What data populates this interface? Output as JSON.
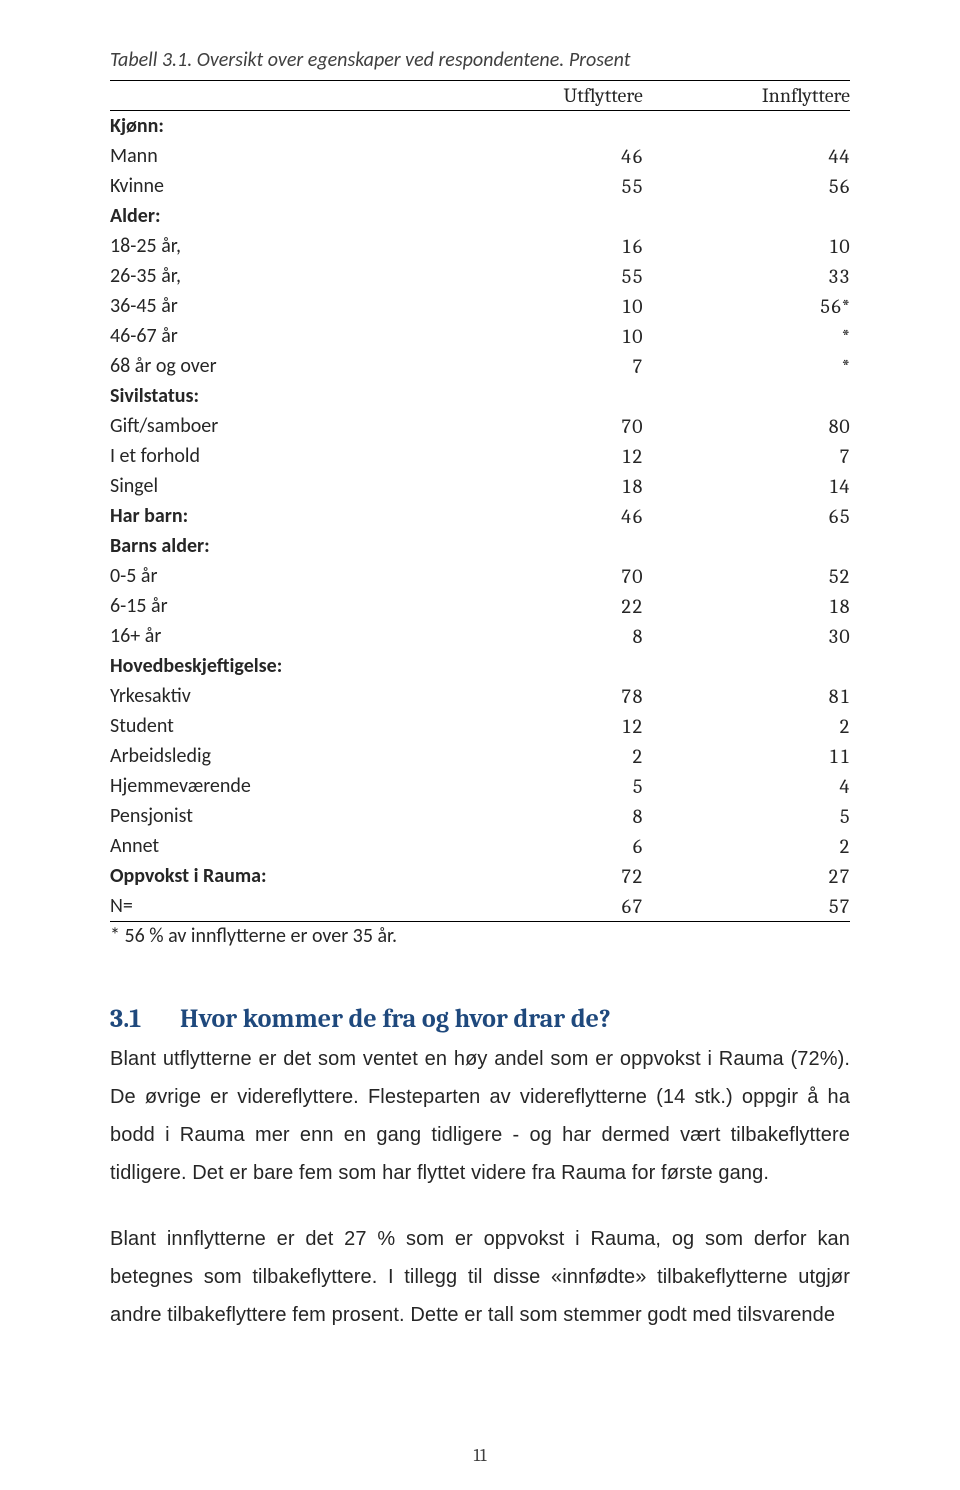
{
  "table": {
    "title": "Tabell 3.1. Oversikt over egenskaper ved respondentene. Prosent",
    "col1": "Utflyttere",
    "col2": "Innflyttere",
    "rows": [
      {
        "label": "Kjønn:",
        "v1": "",
        "v2": "",
        "bold": true
      },
      {
        "label": "Mann",
        "v1": "46",
        "v2": "44"
      },
      {
        "label": "Kvinne",
        "v1": "55",
        "v2": "56"
      },
      {
        "label": "Alder:",
        "v1": "",
        "v2": "",
        "bold": true
      },
      {
        "label": "18-25 år,",
        "v1": "16",
        "v2": "10"
      },
      {
        "label": "26-35 år,",
        "v1": "55",
        "v2": "33"
      },
      {
        "label": "36-45 år",
        "v1": "10",
        "v2": "56*",
        "spacer": true
      },
      {
        "label": "46-67 år",
        "v1": "10",
        "v2": "*",
        "spacer": true
      },
      {
        "label": "68 år og over",
        "v1": "7",
        "v2": "*"
      },
      {
        "label": "Sivilstatus:",
        "v1": "",
        "v2": "",
        "bold": true
      },
      {
        "label": "Gift/samboer",
        "v1": "70",
        "v2": "80"
      },
      {
        "label": "I et forhold",
        "v1": "12",
        "v2": "7"
      },
      {
        "label": "Singel",
        "v1": "18",
        "v2": "14"
      },
      {
        "label": "Har barn:",
        "v1": "46",
        "v2": "65",
        "bold": true
      },
      {
        "label": "Barns alder:",
        "v1": "",
        "v2": "",
        "bold": true
      },
      {
        "label": "0-5 år",
        "v1": "70",
        "v2": "52"
      },
      {
        "label": "6-15 år",
        "v1": "22",
        "v2": "18"
      },
      {
        "label": "16+ år",
        "v1": "8",
        "v2": "30",
        "spacer": true
      },
      {
        "label": "Hovedbeskjeftigelse:",
        "v1": "",
        "v2": "",
        "bold": true,
        "spacer": true
      },
      {
        "label": "Yrkesaktiv",
        "v1": "78",
        "v2": "81"
      },
      {
        "label": "Student",
        "v1": "12",
        "v2": "2"
      },
      {
        "label": "Arbeidsledig",
        "v1": "2",
        "v2": "11"
      },
      {
        "label": "Hjemmeværende",
        "v1": "5",
        "v2": "4"
      },
      {
        "label": "Pensjonist",
        "v1": "8",
        "v2": "5"
      },
      {
        "label": "Annet",
        "v1": "6",
        "v2": "2"
      },
      {
        "label": "Oppvokst i Rauma:",
        "v1": "72",
        "v2": "27",
        "bold": true
      },
      {
        "label": "N=",
        "v1": "67",
        "v2": "57",
        "foot": true
      }
    ],
    "footnote": "* 56 % av innflytterne er over 35 år."
  },
  "heading": {
    "number": "3.1",
    "text": "Hvor kommer de fra og hvor drar de?"
  },
  "para1": "Blant utflytterne er det som ventet en høy andel som er oppvokst i Rauma (72%). De øvrige er videreflyttere. Flesteparten av videreflytterne (14 stk.) oppgir å ha bodd i Rauma mer enn en gang tidligere - og har dermed vært tilbakeflyttere tidligere. Det er bare fem som har flyttet videre fra Rauma for første gang.",
  "para2": "Blant innflytterne er det 27 % som er oppvokst i Rauma, og som derfor kan betegnes som tilbakeflyttere. I tillegg til disse «innfødte» tilbakeflytterne utgjør andre tilbakeflyttere fem prosent. Dette er tall som stemmer godt med tilsvarende",
  "pagenum": "11"
}
